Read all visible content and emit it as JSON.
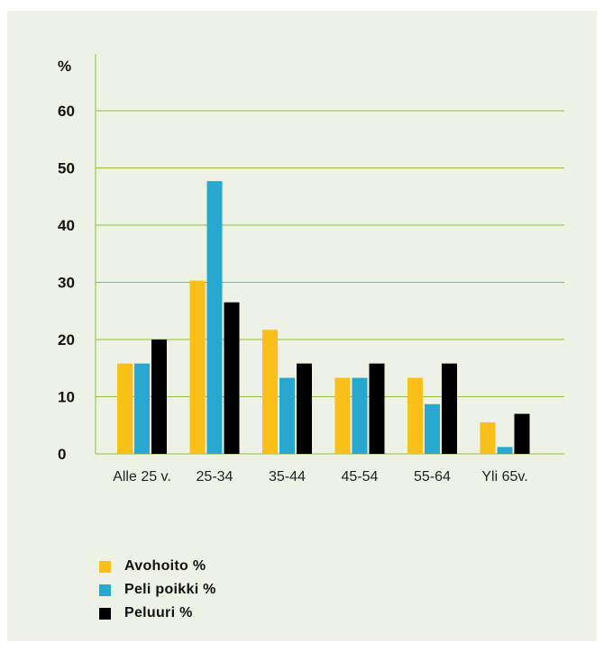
{
  "chart_data": {
    "type": "bar",
    "unit_label": "%",
    "categories": [
      "Alle 25 v.",
      "25-34",
      "35-44",
      "45-54",
      "55-64",
      "Yli 65v."
    ],
    "series": [
      {
        "name": "Avohoito %",
        "color": "#fbbf1a",
        "values": [
          15.8,
          30.3,
          21.7,
          13.3,
          13.3,
          5.5
        ]
      },
      {
        "name": "Peli poikki %",
        "color": "#27a8cf",
        "values": [
          15.8,
          47.7,
          13.3,
          13.3,
          8.7,
          1.2
        ]
      },
      {
        "name": "Peluuri %",
        "color": "#000000",
        "values": [
          20.0,
          26.5,
          15.8,
          15.8,
          15.8,
          7.0
        ]
      }
    ],
    "yticks": [
      0,
      10,
      20,
      30,
      40,
      50,
      60
    ],
    "ylim": [
      0,
      66
    ],
    "grid": true,
    "grid_color": "#8fbf3a",
    "legend_position": "bottom-left"
  }
}
